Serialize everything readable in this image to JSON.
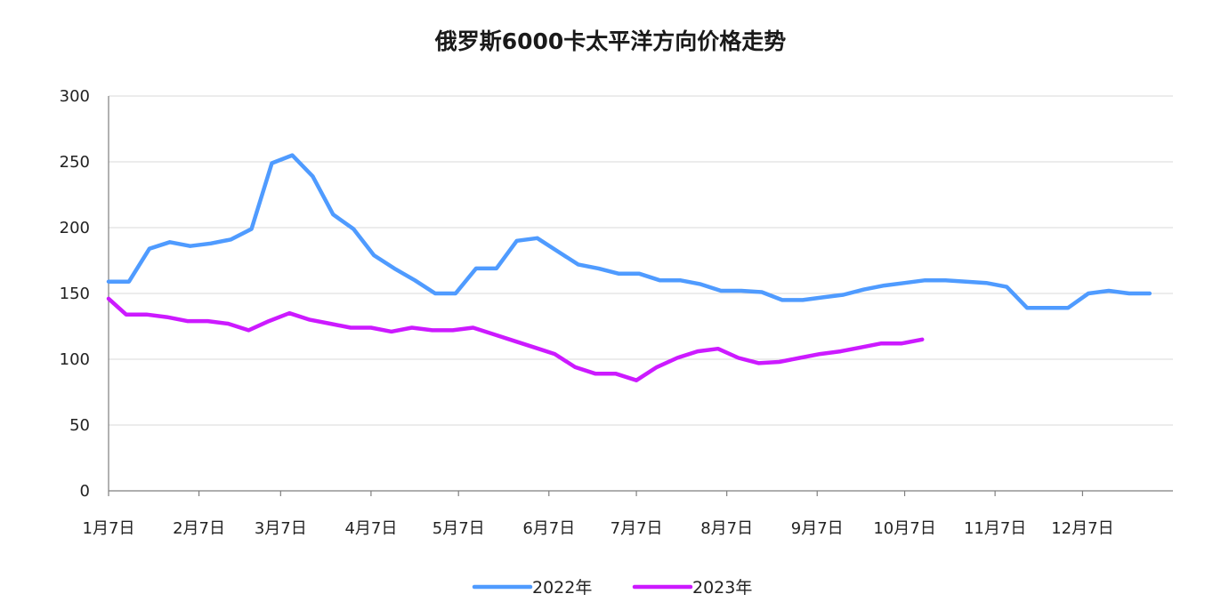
{
  "chart_data": {
    "type": "line",
    "title": "俄罗斯6000卡太平洋方向价格走势",
    "xlabel": "",
    "ylabel": "",
    "ylim": [
      0,
      300
    ],
    "yticks": [
      0,
      50,
      100,
      150,
      200,
      250,
      300
    ],
    "x_tick_labels": [
      "1月7日",
      "2月7日",
      "3月7日",
      "4月7日",
      "5月7日",
      "6月7日",
      "7月7日",
      "8月7日",
      "9月7日",
      "10月7日",
      "11月7日",
      "12月7日"
    ],
    "grid": true,
    "legend_position": "bottom",
    "series": [
      {
        "name": "2022年",
        "color": "#4f9bff",
        "points": [
          [
            "01-07",
            159
          ],
          [
            "01-14",
            159
          ],
          [
            "01-21",
            184
          ],
          [
            "01-28",
            189
          ],
          [
            "02-04",
            186
          ],
          [
            "02-11",
            188
          ],
          [
            "02-18",
            191
          ],
          [
            "02-25",
            199
          ],
          [
            "03-04",
            249
          ],
          [
            "03-11",
            255
          ],
          [
            "03-18",
            239
          ],
          [
            "03-25",
            210
          ],
          [
            "04-01",
            199
          ],
          [
            "04-08",
            179
          ],
          [
            "04-15",
            169
          ],
          [
            "04-22",
            160
          ],
          [
            "04-29",
            150
          ],
          [
            "05-06",
            150
          ],
          [
            "05-13",
            169
          ],
          [
            "05-20",
            169
          ],
          [
            "05-27",
            190
          ],
          [
            "06-03",
            192
          ],
          [
            "06-10",
            182
          ],
          [
            "06-17",
            172
          ],
          [
            "06-24",
            169
          ],
          [
            "07-01",
            165
          ],
          [
            "07-08",
            165
          ],
          [
            "07-15",
            160
          ],
          [
            "07-22",
            160
          ],
          [
            "07-29",
            157
          ],
          [
            "08-05",
            152
          ],
          [
            "08-12",
            152
          ],
          [
            "08-19",
            151
          ],
          [
            "08-26",
            145
          ],
          [
            "09-02",
            145
          ],
          [
            "09-09",
            147
          ],
          [
            "09-16",
            149
          ],
          [
            "09-23",
            153
          ],
          [
            "09-30",
            156
          ],
          [
            "10-07",
            158
          ],
          [
            "10-14",
            160
          ],
          [
            "10-21",
            160
          ],
          [
            "10-28",
            159
          ],
          [
            "11-04",
            158
          ],
          [
            "11-11",
            155
          ],
          [
            "11-18",
            139
          ],
          [
            "11-25",
            139
          ],
          [
            "12-02",
            139
          ],
          [
            "12-09",
            150
          ],
          [
            "12-16",
            152
          ],
          [
            "12-23",
            150
          ],
          [
            "12-30",
            150
          ]
        ]
      },
      {
        "name": "2023年",
        "color": "#cc1aff",
        "points": [
          [
            "01-06",
            146
          ],
          [
            "01-13",
            134
          ],
          [
            "01-20",
            134
          ],
          [
            "01-27",
            132
          ],
          [
            "02-03",
            129
          ],
          [
            "02-10",
            129
          ],
          [
            "02-17",
            127
          ],
          [
            "02-24",
            122
          ],
          [
            "03-03",
            129
          ],
          [
            "03-10",
            135
          ],
          [
            "03-17",
            130
          ],
          [
            "03-24",
            127
          ],
          [
            "03-31",
            124
          ],
          [
            "04-07",
            124
          ],
          [
            "04-14",
            121
          ],
          [
            "04-21",
            124
          ],
          [
            "04-28",
            122
          ],
          [
            "05-05",
            122
          ],
          [
            "05-12",
            124
          ],
          [
            "05-19",
            119
          ],
          [
            "05-26",
            114
          ],
          [
            "06-02",
            109
          ],
          [
            "06-09",
            104
          ],
          [
            "06-16",
            94
          ],
          [
            "06-23",
            89
          ],
          [
            "06-30",
            89
          ],
          [
            "07-07",
            84
          ],
          [
            "07-14",
            94
          ],
          [
            "07-21",
            101
          ],
          [
            "07-28",
            106
          ],
          [
            "08-04",
            108
          ],
          [
            "08-11",
            101
          ],
          [
            "08-18",
            97
          ],
          [
            "08-25",
            98
          ],
          [
            "09-01",
            101
          ],
          [
            "09-08",
            104
          ],
          [
            "09-15",
            106
          ],
          [
            "09-22",
            109
          ],
          [
            "09-29",
            112
          ],
          [
            "10-06",
            112
          ],
          [
            "10-13",
            115
          ]
        ]
      }
    ]
  }
}
